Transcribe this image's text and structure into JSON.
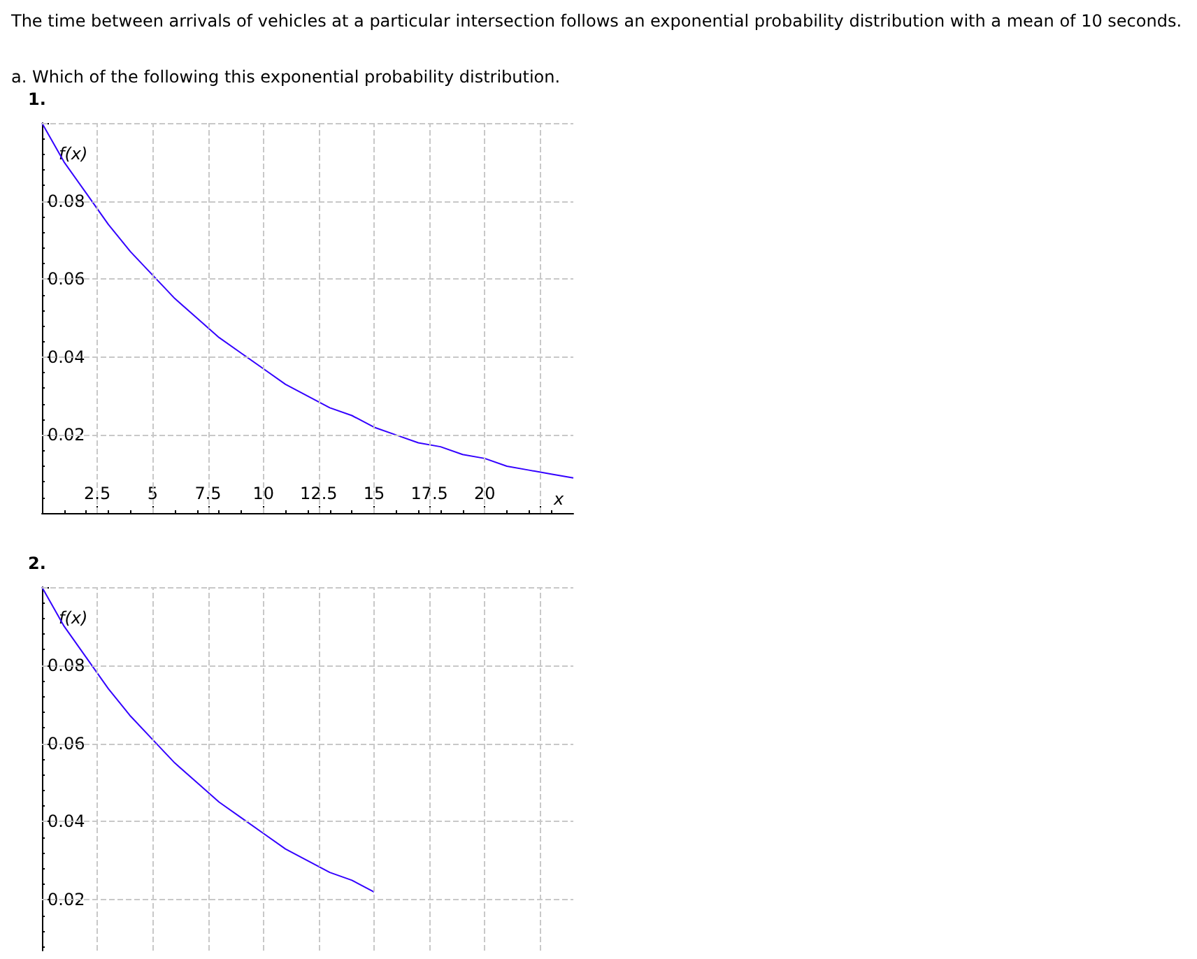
{
  "chart_data": [
    {
      "type": "line",
      "title": "1.",
      "annotations": [
        "The time between arrivals of vehicles at a particular intersection follows an exponential probability distribution with a mean of 10 seconds.",
        "a. Which of the following this exponential probability distribution."
      ],
      "xlabel": "x",
      "ylabel": "f(x)",
      "x": [
        0,
        1,
        2,
        3,
        4,
        5,
        6,
        7,
        8,
        9,
        10,
        11,
        12,
        13,
        14,
        15,
        16,
        17,
        18,
        19,
        20,
        21,
        22,
        23,
        24
      ],
      "series": [
        {
          "color": "#3300ff",
          "values": [
            0.1,
            0.09,
            0.082,
            0.074,
            0.067,
            0.061,
            0.055,
            0.05,
            0.045,
            0.041,
            0.037,
            0.033,
            0.03,
            0.027,
            0.025,
            0.022,
            0.02,
            0.018,
            0.017,
            0.015,
            0.014,
            0.012,
            0.011,
            0.01,
            0.009
          ]
        }
      ],
      "xlim": [
        0,
        24
      ],
      "ylim": [
        0,
        0.1
      ],
      "xticks": [
        2.5,
        5,
        7.5,
        10,
        12.5,
        15,
        17.5,
        20
      ],
      "yticks": [
        0.02,
        0.04,
        0.06,
        0.08
      ],
      "grid": true,
      "marker": "none",
      "line_style": "solid"
    },
    {
      "type": "line",
      "title": "2.",
      "ylabel": "f(x)",
      "x": [
        0,
        1,
        2,
        3,
        4,
        5,
        6,
        7,
        8,
        9,
        10,
        11,
        12,
        13,
        14,
        15
      ],
      "series": [
        {
          "color": "#3300ff",
          "values": [
            0.1,
            0.09,
            0.082,
            0.074,
            0.067,
            0.061,
            0.055,
            0.05,
            0.045,
            0.041,
            0.037,
            0.033,
            0.03,
            0.027,
            0.025,
            0.022
          ]
        }
      ],
      "xlim": [
        0,
        24
      ],
      "ylim": [
        0.007,
        0.1
      ],
      "xticks": [
        2.5,
        5,
        7.5,
        10,
        12.5,
        15,
        17.5,
        20
      ],
      "yticks": [
        0.02,
        0.04,
        0.06,
        0.08
      ],
      "grid": true,
      "marker": "none",
      "line_style": "solid",
      "tick_labels": "y"
    }
  ]
}
